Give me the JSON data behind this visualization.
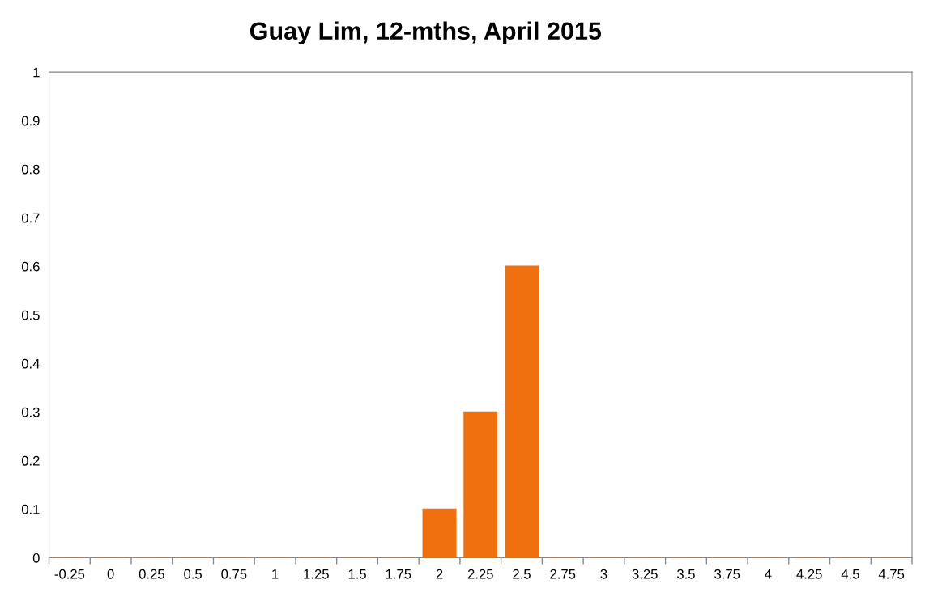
{
  "chart_data": {
    "type": "bar",
    "title": "Guay Lim, 12-mths, April 2015",
    "categories": [
      "-0.25",
      "0",
      "0.25",
      "0.5",
      "0.75",
      "1",
      "1.25",
      "1.5",
      "1.75",
      "2",
      "2.25",
      "2.5",
      "2.75",
      "3",
      "3.25",
      "3.5",
      "3.75",
      "4",
      "4.25",
      "4.5",
      "4.75"
    ],
    "values": [
      0,
      0,
      0,
      0,
      0,
      0,
      0,
      0,
      0,
      0.1,
      0.3,
      0.6,
      0,
      0,
      0,
      0,
      0,
      0,
      0,
      0,
      0
    ],
    "color": "#f07010",
    "ylim": [
      0,
      1
    ],
    "yticks": [
      0,
      0.1,
      0.2,
      0.3,
      0.4,
      0.5,
      0.6,
      0.7,
      0.8,
      0.9,
      1
    ],
    "grid": false
  }
}
